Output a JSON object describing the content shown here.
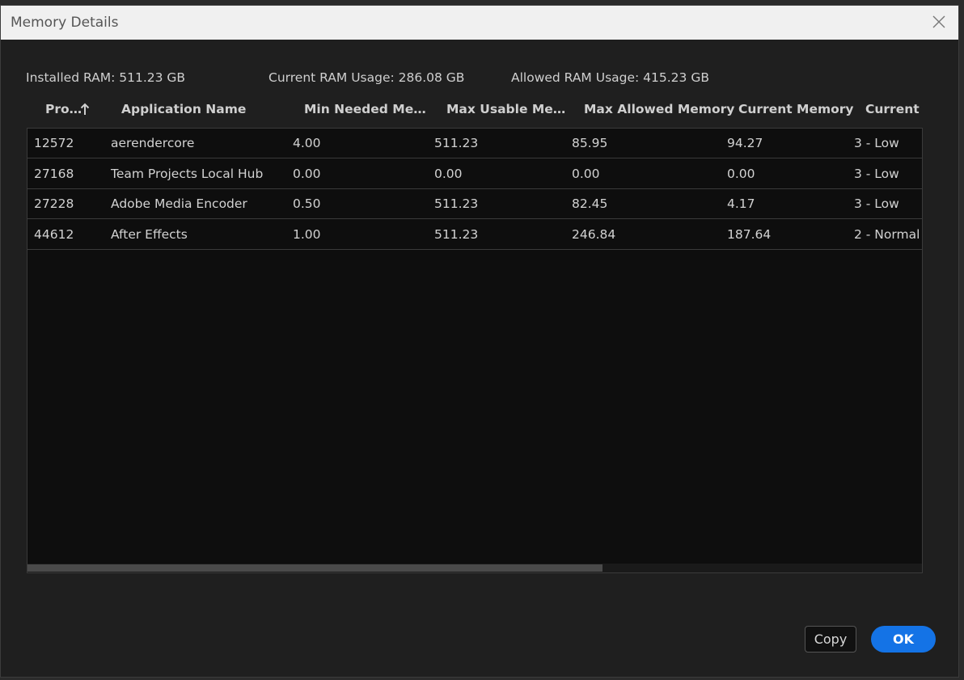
{
  "dialog": {
    "title": "Memory Details",
    "summary": [
      "Installed RAM: 511.23 GB",
      "Current RAM Usage: 286.08 GB",
      "Allowed RAM Usage: 415.23 GB"
    ],
    "table": {
      "headers": [
        "Pro…",
        "Application Name",
        "Min Needed Me…",
        "Max Usable Me…",
        "Max Allowed Memory",
        "Current Memory",
        "Current P"
      ],
      "rows": [
        [
          "12572",
          "aerendercore",
          "4.00",
          "511.23",
          "85.95",
          "94.27",
          "3 - Low"
        ],
        [
          "27168",
          "Team Projects Local Hub",
          "0.00",
          "0.00",
          "0.00",
          "0.00",
          "3 - Low"
        ],
        [
          "27228",
          "Adobe Media Encoder",
          "0.50",
          "511.23",
          "82.45",
          "4.17",
          "3 - Low"
        ],
        [
          "44612",
          "After Effects",
          "1.00",
          "511.23",
          "246.84",
          "187.64",
          "2 - Normal"
        ]
      ]
    },
    "buttons": {
      "copy": "Copy",
      "ok": "OK"
    }
  }
}
